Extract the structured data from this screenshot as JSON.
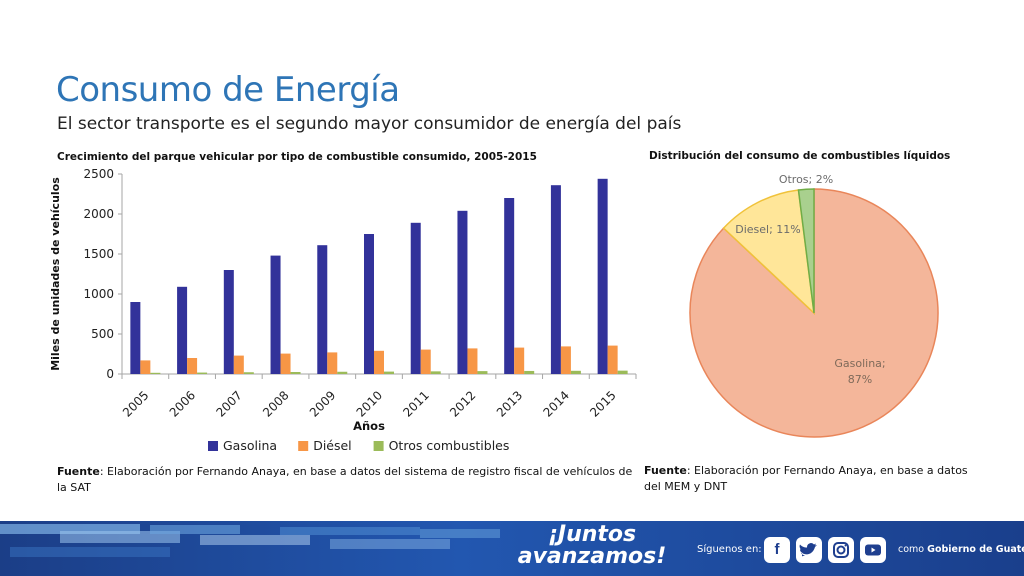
{
  "slide": {
    "title": "Consumo de Energía",
    "subtitle": "El sector transporte es el segundo mayor consumidor de energía del país"
  },
  "bar_chart_title": "Crecimiento del parque vehicular por tipo de combustible consumido, 2005-2015",
  "pie_chart_title": "Distribución del consumo de combustibles líquidos",
  "footnotes": {
    "left_label": "Fuente",
    "left_text": ": Elaboración por Fernando Anaya, en base a datos del sistema de registro fiscal de vehículos de la SAT",
    "right_label": "Fuente",
    "right_text": ": Elaboración por Fernando Anaya, en base a datos del MEM y DNT"
  },
  "footer": {
    "brand_line1": "¡Juntos",
    "brand_line2": "avanzamos!",
    "follow_text": "Síguenos en:",
    "social_icons": [
      "facebook-icon",
      "twitter-icon",
      "instagram-icon",
      "youtube-icon"
    ],
    "como_prefix": "como",
    "como_name": "Gobierno de Guatemala",
    "band_color": "#1f4fa0"
  },
  "chart_data": [
    {
      "type": "bar",
      "categories": [
        "2005",
        "2006",
        "2007",
        "2008",
        "2009",
        "2010",
        "2011",
        "2012",
        "2013",
        "2014",
        "2015"
      ],
      "series": [
        {
          "name": "Gasolina",
          "color": "#32329a",
          "values": [
            900,
            1090,
            1300,
            1480,
            1610,
            1750,
            1890,
            2040,
            2200,
            2360,
            2440
          ]
        },
        {
          "name": "Diésel",
          "color": "#f79646",
          "values": [
            170,
            200,
            230,
            255,
            270,
            290,
            305,
            320,
            330,
            345,
            355
          ]
        },
        {
          "name": "Otros combustibles",
          "color": "#9bbb59",
          "values": [
            15,
            18,
            22,
            25,
            28,
            30,
            33,
            36,
            38,
            40,
            42
          ]
        }
      ],
      "xlabel": "Años",
      "ylabel": "Miles de unidades de vehículos",
      "ylim": [
        0,
        2500
      ],
      "yticks": [
        0,
        500,
        1000,
        1500,
        2000,
        2500
      ],
      "grid": false,
      "legend_position": "bottom"
    },
    {
      "type": "pie",
      "slices": [
        {
          "label": "Gasolina",
          "value": 87,
          "color": "#f4b69a"
        },
        {
          "label": "Diesel",
          "value": 11,
          "color": "#ffe699"
        },
        {
          "label": "Otros",
          "value": 2,
          "color": "#a9d08e"
        }
      ],
      "labels": [
        "Gasolina; 87%",
        "Diesel; 11%",
        "Otros; 2%"
      ]
    }
  ]
}
